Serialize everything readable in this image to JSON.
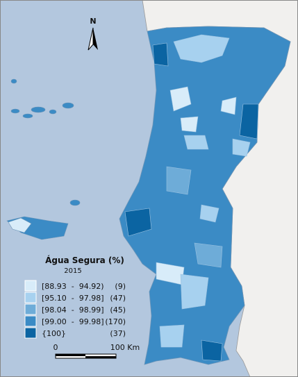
{
  "map": {
    "north": "N",
    "legend": {
      "title": "Água Segura (%)",
      "subtitle": "2015",
      "items": [
        {
          "range": "[88.93  -  94.92)",
          "count": "(9)",
          "color": "#d8ecf9"
        },
        {
          "range": "[95.10  -  97.98]",
          "count": "(47)",
          "color": "#a7d1ef"
        },
        {
          "range": "[98.04  -  98.99]",
          "count": "(45)",
          "color": "#6eacd8"
        },
        {
          "range": "[99.00  -  99.98]",
          "count": "(170)",
          "color": "#3b8bc5"
        },
        {
          "range": "{100}",
          "count": "(37)",
          "color": "#0b64a2"
        }
      ]
    },
    "scale": {
      "start": "0",
      "end": "100 Km"
    }
  }
}
